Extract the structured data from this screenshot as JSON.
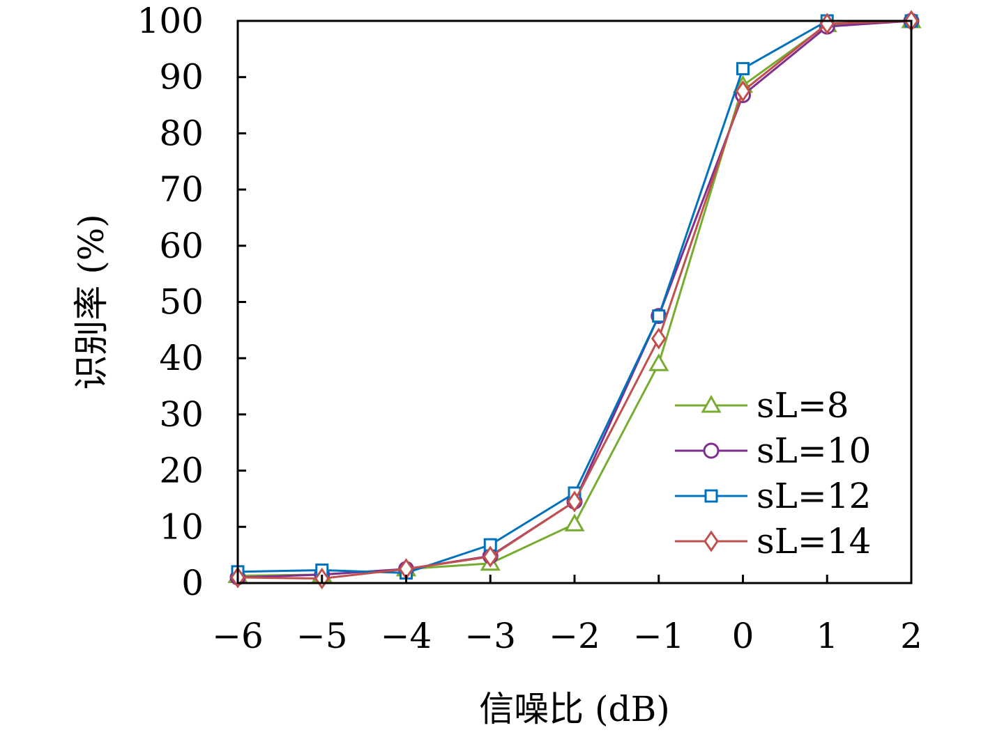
{
  "chart_data": {
    "type": "line",
    "xlabel": "信噪比 (dB)",
    "ylabel": "识别率 (%)",
    "x": [
      -6,
      -5,
      -4,
      -3,
      -2,
      -1,
      0,
      1,
      2
    ],
    "x_tick_labels": [
      "−6",
      "−5",
      "−4",
      "−3",
      "−2",
      "−1",
      "0",
      "1",
      "2"
    ],
    "y_ticks": [
      0,
      10,
      20,
      30,
      40,
      50,
      60,
      70,
      80,
      90,
      100
    ],
    "y_tick_labels": [
      "0",
      "10",
      "20",
      "30",
      "40",
      "50",
      "60",
      "70",
      "80",
      "90",
      "100"
    ],
    "xlim": [
      -6,
      2
    ],
    "ylim": [
      0,
      100
    ],
    "grid": false,
    "legend_position": "bottom-right",
    "series": [
      {
        "name": "sL=8",
        "color": "#77ac30",
        "marker": "triangle",
        "values": [
          1.3,
          1.5,
          2.5,
          3.5,
          10.5,
          39.0,
          88.5,
          99.3,
          100
        ]
      },
      {
        "name": "sL=10",
        "color": "#7e2f8e",
        "marker": "circle",
        "values": [
          1.0,
          1.5,
          2.5,
          4.8,
          14.5,
          47.5,
          86.8,
          99.0,
          100
        ]
      },
      {
        "name": "sL=12",
        "color": "#0072bd",
        "marker": "square",
        "values": [
          2.0,
          2.3,
          1.8,
          6.8,
          16.0,
          47.5,
          91.5,
          100,
          100
        ]
      },
      {
        "name": "sL=14",
        "color": "#c0504d",
        "marker": "diamond",
        "values": [
          1.0,
          0.8,
          2.5,
          4.7,
          14.5,
          43.5,
          87.5,
          99.5,
          100
        ]
      }
    ]
  }
}
